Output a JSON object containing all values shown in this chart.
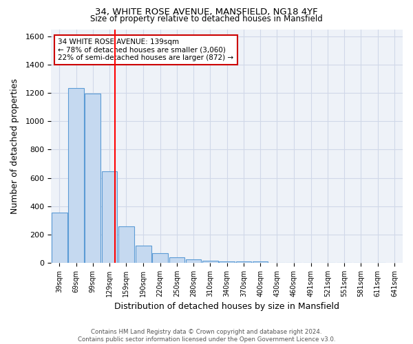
{
  "title1": "34, WHITE ROSE AVENUE, MANSFIELD, NG18 4YF",
  "title2": "Size of property relative to detached houses in Mansfield",
  "xlabel": "Distribution of detached houses by size in Mansfield",
  "ylabel": "Number of detached properties",
  "footer1": "Contains HM Land Registry data © Crown copyright and database right 2024.",
  "footer2": "Contains public sector information licensed under the Open Government Licence v3.0.",
  "annotation_line1": "34 WHITE ROSE AVENUE: 139sqm",
  "annotation_line2": "← 78% of detached houses are smaller (3,060)",
  "annotation_line3": "22% of semi-detached houses are larger (872) →",
  "property_size": 139,
  "bins": [
    39,
    69,
    99,
    129,
    159,
    190,
    220,
    250,
    280,
    310,
    340,
    370,
    400,
    430,
    460,
    491,
    521,
    551,
    581,
    611,
    641
  ],
  "counts": [
    355,
    1235,
    1195,
    645,
    260,
    120,
    70,
    38,
    25,
    17,
    12,
    10,
    8,
    0,
    0,
    0,
    0,
    0,
    0,
    0
  ],
  "bar_fill_color": "#c5d9f0",
  "bar_edge_color": "#5b9bd5",
  "red_line_color": "#ff0000",
  "grid_color": "#d0d8e8",
  "bg_color": "#eef2f8",
  "annotation_box_edge": "#cc0000",
  "ylim": [
    0,
    1650
  ],
  "yticks": [
    0,
    200,
    400,
    600,
    800,
    1000,
    1200,
    1400,
    1600
  ]
}
